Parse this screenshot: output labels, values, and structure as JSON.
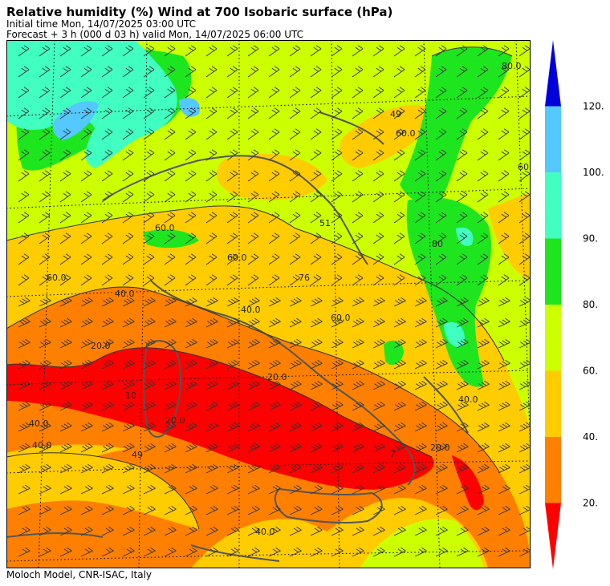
{
  "header": {
    "title": "Relative humidity (%) Wind  at 700 Isobaric surface (hPa)",
    "initial_time": "Initial time  Mon, 14/07/2025  03:00 UTC",
    "forecast": "Forecast  +   3 h  (000 d 03 h)  valid Mon, 14/07/2025 06:00 UTC"
  },
  "footer": "Moloch Model, CNR-ISAC, Italy",
  "legend": {
    "classes": [
      {
        "lower": 0,
        "upper": 20,
        "color": "#ff0000"
      },
      {
        "lower": 20,
        "upper": 40,
        "color": "#ff8000"
      },
      {
        "lower": 40,
        "upper": 60,
        "color": "#ffcc00"
      },
      {
        "lower": 60,
        "upper": 80,
        "color": "#ccff00"
      },
      {
        "lower": 80,
        "upper": 90,
        "color": "#1ee61e"
      },
      {
        "lower": 90,
        "upper": 100,
        "color": "#40ffc0"
      },
      {
        "lower": 100,
        "upper": 120,
        "color": "#55c8ff"
      },
      {
        "lower": 120,
        "upper": null,
        "color": "#0000dd"
      }
    ],
    "tick_labels": [
      "120.",
      "100.",
      "90.",
      "80.",
      "60.",
      "40.",
      "20."
    ]
  },
  "contour_labels": [
    {
      "text": "80.0",
      "role": "ne-corner"
    },
    {
      "text": "49",
      "role": "ne"
    },
    {
      "text": "60.0",
      "role": "ne-top"
    },
    {
      "text": "60",
      "role": "east-edge"
    },
    {
      "text": "51",
      "role": "centre"
    },
    {
      "text": "60.0",
      "role": "north-west"
    },
    {
      "text": "60.0",
      "role": "alps"
    },
    {
      "text": "60.0",
      "role": "west"
    },
    {
      "text": "40.0",
      "role": "west-band"
    },
    {
      "text": "40.0",
      "role": "centre-band"
    },
    {
      "text": "76",
      "role": "centre-point"
    },
    {
      "text": "60.0",
      "role": "east-band"
    },
    {
      "text": "80",
      "role": "balkan"
    },
    {
      "text": "20.0",
      "role": "west-red"
    },
    {
      "text": "10",
      "role": "sardinia"
    },
    {
      "text": "20.0",
      "role": "sardinia-south"
    },
    {
      "text": "20.0",
      "role": "tyrrhenian"
    },
    {
      "text": "40.0",
      "role": "south-west-1"
    },
    {
      "text": "40.0",
      "role": "south-west-2"
    },
    {
      "text": "49",
      "role": "south-west-point"
    },
    {
      "text": "40.0",
      "role": "south"
    },
    {
      "text": "20.0",
      "role": "south-east"
    },
    {
      "text": "40.0",
      "role": "east-south"
    },
    {
      "text": "7",
      "role": "calabria"
    }
  ]
}
